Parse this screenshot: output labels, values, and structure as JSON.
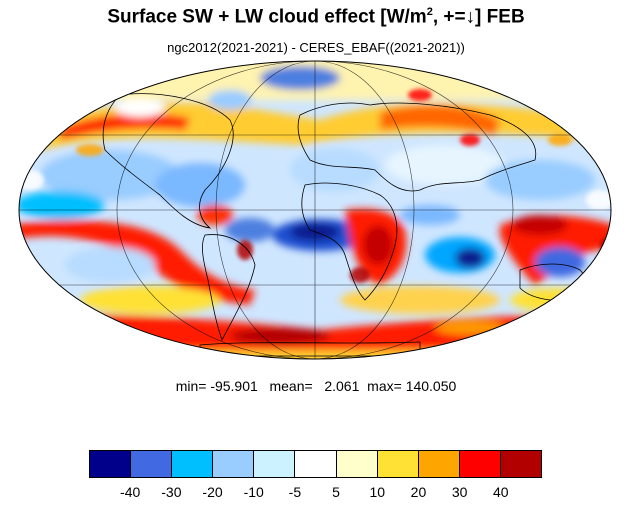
{
  "title": {
    "main": "Surface SW + LW cloud effect [W/m",
    "sup": "2",
    "tail": ", +=↓]  FEB"
  },
  "subtitle": "ngc2012(2021-2021) - CERES_EBAF((2021-2021))",
  "stats": {
    "min_label": "min=",
    "min": "-95.901",
    "mean_label": "mean=",
    "mean": "2.061",
    "max_label": "max=",
    "max": "140.050"
  },
  "colorbar": {
    "colors": [
      "#00008b",
      "#4169e1",
      "#00bfff",
      "#99ccff",
      "#ccf2ff",
      "#ffffff",
      "#ffffcc",
      "#ffe135",
      "#ffa500",
      "#ff0000",
      "#b20000"
    ],
    "labels": [
      "-40",
      "-30",
      "-20",
      "-10",
      "-5",
      "5",
      "10",
      "20",
      "30",
      "40"
    ]
  },
  "map": {
    "projection": "Mollweide",
    "land_outlines": true,
    "graticule": true,
    "regions": [
      {
        "name": "south-atlantic-south-africa-positive",
        "level": "30 to 40",
        "color": "#ff0000"
      },
      {
        "name": "indian-ocean-west-australia-negative",
        "level": "-40 to -30",
        "color": "#00008b"
      },
      {
        "name": "maritime-continent-positive",
        "level": "> 40",
        "color": "#b20000"
      },
      {
        "name": "southern-ocean-positive-band",
        "level": "30 to 40",
        "color": "#ff0000"
      },
      {
        "name": "south-pacific-convergence-negative",
        "level": "-20 to -10",
        "color": "#99ccff"
      },
      {
        "name": "central-atlantic-negative",
        "level": "-30 to -20",
        "color": "#00bfff"
      }
    ]
  }
}
